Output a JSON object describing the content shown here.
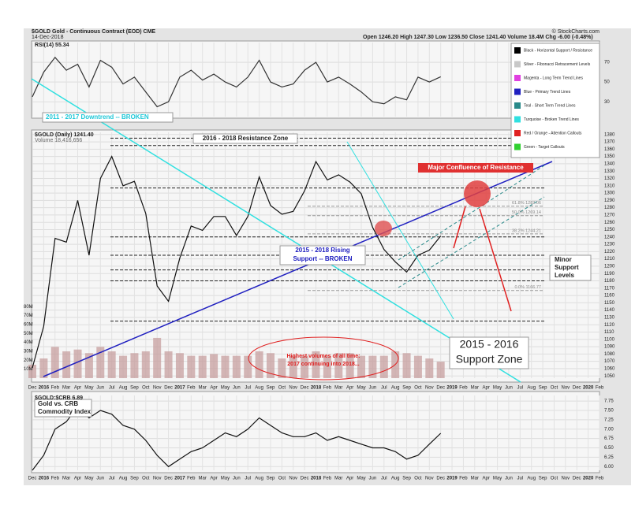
{
  "header": {
    "symbol": "$GOLD Gold - Continuous Contract (EOD) CME",
    "date": "14-Dec-2018",
    "quote": "Open 1246.20 High 1247.30 Low 1236.50 Close 1241.40 Volume 18.4M Chg -6.00 (-0.48%)",
    "source": "© StockCharts.com"
  },
  "legend": [
    "Black - Horizontal Support / Resistance",
    "Silver - Fibonacci Retracement Levels",
    "Magenta - Long Term Trend Lines",
    "Blue - Primary Trend Lines",
    "Teal - Short Term Trend Lines",
    "Turquoise - Broken Trend Lines",
    "Red / Orange - Attention Callouts",
    "Green - Target Callouts"
  ],
  "legend_colors": [
    "#000000",
    "#c8c8c8",
    "#e040e0",
    "#2020c0",
    "#2a8a8a",
    "#30e0e0",
    "#e02020",
    "#30d030"
  ],
  "annotations": [
    "2011 - 2017 Downtrend -- BROKEN",
    "2016 - 2018 Resistance Zone",
    "Major Confluence of Resistance",
    "2015 - 2018 Rising",
    "Support -- BROKEN",
    "Minor",
    "Support",
    "Levels",
    "Highest volumes of all time:",
    "2017 continuing into 2018...",
    "2015 - 2016",
    "Support Zone",
    "Gold vs. CRB",
    "Commodity Index"
  ],
  "chart_data": [
    {
      "type": "line",
      "title": "RSI(14) 55.34",
      "x": [
        "2015-12",
        "2016-01",
        "2016-02",
        "2016-03",
        "2016-04",
        "2016-05",
        "2016-06",
        "2016-07",
        "2016-08",
        "2016-09",
        "2016-10",
        "2016-11",
        "2016-12",
        "2017-01",
        "2017-02",
        "2017-03",
        "2017-04",
        "2017-05",
        "2017-06",
        "2017-07",
        "2017-08",
        "2017-09",
        "2017-10",
        "2017-11",
        "2017-12",
        "2018-01",
        "2018-02",
        "2018-03",
        "2018-04",
        "2018-05",
        "2018-06",
        "2018-07",
        "2018-08",
        "2018-09",
        "2018-10",
        "2018-11",
        "2018-12"
      ],
      "series": [
        {
          "color": "#333333",
          "values": [
            35,
            60,
            75,
            62,
            68,
            45,
            72,
            65,
            48,
            55,
            40,
            25,
            30,
            55,
            62,
            52,
            58,
            50,
            45,
            55,
            72,
            50,
            45,
            48,
            62,
            70,
            50,
            55,
            48,
            40,
            30,
            28,
            35,
            32,
            55,
            50,
            55.34
          ]
        }
      ],
      "ylim": [
        15,
        90
      ],
      "yticks": [
        30,
        50,
        70
      ],
      "grid": true
    },
    {
      "type": "line",
      "title": "$GOLD (Daily) 1241.40",
      "subtitle": "Volume 18,416,656",
      "x": [
        "2015-12",
        "2016-01",
        "2016-02",
        "2016-03",
        "2016-04",
        "2016-05",
        "2016-06",
        "2016-07",
        "2016-08",
        "2016-09",
        "2016-10",
        "2016-11",
        "2016-12",
        "2017-01",
        "2017-02",
        "2017-03",
        "2017-04",
        "2017-05",
        "2017-06",
        "2017-07",
        "2017-08",
        "2017-09",
        "2017-10",
        "2017-11",
        "2017-12",
        "2018-01",
        "2018-02",
        "2018-03",
        "2018-04",
        "2018-05",
        "2018-06",
        "2018-07",
        "2018-08",
        "2018-09",
        "2018-10",
        "2018-11",
        "2018-12"
      ],
      "series": [
        {
          "type": "bar",
          "axis": "y2",
          "color": "#c49a9a",
          "values": [
            15000000,
            22000000,
            35000000,
            30000000,
            32000000,
            28000000,
            35000000,
            30000000,
            25000000,
            28000000,
            30000000,
            45000000,
            30000000,
            28000000,
            25000000,
            25000000,
            27000000,
            25000000,
            25000000,
            25000000,
            30000000,
            28000000,
            22000000,
            25000000,
            25000000,
            30000000,
            25000000,
            28000000,
            28000000,
            25000000,
            25000000,
            25000000,
            30000000,
            28000000,
            25000000,
            22000000,
            18416656
          ]
        },
        {
          "type": "line",
          "color": "#111111",
          "values": [
            1061,
            1118,
            1238,
            1233,
            1290,
            1215,
            1320,
            1350,
            1310,
            1316,
            1272,
            1173,
            1152,
            1211,
            1255,
            1249,
            1268,
            1268,
            1242,
            1268,
            1322,
            1283,
            1271,
            1275,
            1303,
            1343,
            1318,
            1325,
            1315,
            1299,
            1253,
            1223,
            1206,
            1192,
            1215,
            1222,
            1241.4
          ]
        }
      ],
      "levels": [
        1375,
        1365,
        1307,
        {
          "value": 1282.06,
          "label": "61.8% 1282.06"
        },
        {
          "value": 1269.14,
          "label": "50.0% 1269.14"
        },
        {
          "value": 1244.21,
          "label": "38.2% 1244.21"
        },
        1240,
        1215,
        1195,
        1180,
        {
          "value": 1166.77,
          "label": "0.0% 1166.77"
        },
        1125
      ],
      "ylim": [
        1047,
        1383
      ],
      "yticks": [
        1050,
        1060,
        1070,
        1080,
        1090,
        1100,
        1110,
        1120,
        1130,
        1140,
        1150,
        1160,
        1170,
        1180,
        1190,
        1200,
        1210,
        1220,
        1230,
        1240,
        1250,
        1260,
        1270,
        1280,
        1290,
        1300,
        1310,
        1320,
        1330,
        1340,
        1350,
        1360,
        1370,
        1380
      ],
      "y2lim": [
        0,
        275000000
      ],
      "y2ticks": [
        {
          "value": 10000000,
          "label": "10M"
        },
        {
          "value": 20000000,
          "label": "20M"
        },
        {
          "value": 30000000,
          "label": "30M"
        },
        {
          "value": 40000000,
          "label": "40M"
        },
        {
          "value": 50000000,
          "label": "50M"
        },
        {
          "value": 60000000,
          "label": "60M"
        },
        {
          "value": 70000000,
          "label": "70M"
        },
        {
          "value": 80000000,
          "label": "80M"
        }
      ],
      "xlim": [
        "2015-12",
        "2020-02"
      ],
      "xticks": [
        {
          "value": "2015-12",
          "label": "Dec"
        },
        {
          "value": "2016-01",
          "label": "2016"
        },
        {
          "value": "2016-02",
          "label": "Feb"
        },
        {
          "value": "2016-03",
          "label": "Mar"
        },
        {
          "value": "2016-04",
          "label": "Apr"
        },
        {
          "value": "2016-05",
          "label": "May"
        },
        {
          "value": "2016-06",
          "label": "Jun"
        },
        {
          "value": "2016-07",
          "label": "Jul"
        },
        {
          "value": "2016-08",
          "label": "Aug"
        },
        {
          "value": "2016-09",
          "label": "Sep"
        },
        {
          "value": "2016-10",
          "label": "Oct"
        },
        {
          "value": "2016-11",
          "label": "Nov"
        },
        {
          "value": "2016-12",
          "label": "Dec"
        },
        {
          "value": "2017-01",
          "label": "2017"
        },
        {
          "value": "2017-02",
          "label": "Feb"
        },
        {
          "value": "2017-03",
          "label": "Mar"
        },
        {
          "value": "2017-04",
          "label": "Apr"
        },
        {
          "value": "2017-05",
          "label": "May"
        },
        {
          "value": "2017-06",
          "label": "Jun"
        },
        {
          "value": "2017-07",
          "label": "Jul"
        },
        {
          "value": "2017-08",
          "label": "Aug"
        },
        {
          "value": "2017-09",
          "label": "Sep"
        },
        {
          "value": "2017-10",
          "label": "Oct"
        },
        {
          "value": "2017-11",
          "label": "Nov"
        },
        {
          "value": "2017-12",
          "label": "Dec"
        },
        {
          "value": "2018-01",
          "label": "2018"
        },
        {
          "value": "2018-02",
          "label": "Feb"
        },
        {
          "value": "2018-03",
          "label": "Mar"
        },
        {
          "value": "2018-04",
          "label": "Apr"
        },
        {
          "value": "2018-05",
          "label": "May"
        },
        {
          "value": "2018-06",
          "label": "Jun"
        },
        {
          "value": "2018-07",
          "label": "Jul"
        },
        {
          "value": "2018-08",
          "label": "Aug"
        },
        {
          "value": "2018-09",
          "label": "Sep"
        },
        {
          "value": "2018-10",
          "label": "Oct"
        },
        {
          "value": "2018-11",
          "label": "Nov"
        },
        {
          "value": "2018-12",
          "label": "Dec"
        },
        {
          "value": "2019-01",
          "label": "2019"
        },
        {
          "value": "2019-02",
          "label": "Feb"
        },
        {
          "value": "2019-03",
          "label": "Mar"
        },
        {
          "value": "2019-04",
          "label": "Apr"
        },
        {
          "value": "2019-05",
          "label": "May"
        },
        {
          "value": "2019-06",
          "label": "Jun"
        },
        {
          "value": "2019-07",
          "label": "Jul"
        },
        {
          "value": "2019-08",
          "label": "Aug"
        },
        {
          "value": "2019-09",
          "label": "Sep"
        },
        {
          "value": "2019-10",
          "label": "Oct"
        },
        {
          "value": "2019-11",
          "label": "Nov"
        },
        {
          "value": "2019-12",
          "label": "Dec"
        },
        {
          "value": "2020-01",
          "label": "2020"
        },
        {
          "value": "2020-02",
          "label": "Feb"
        }
      ],
      "grid": true
    },
    {
      "type": "line",
      "title": "$GOLD:$CRB 6.89",
      "x": [
        "2015-12",
        "2016-01",
        "2016-02",
        "2016-03",
        "2016-04",
        "2016-05",
        "2016-06",
        "2016-07",
        "2016-08",
        "2016-09",
        "2016-10",
        "2016-11",
        "2016-12",
        "2017-01",
        "2017-02",
        "2017-03",
        "2017-04",
        "2017-05",
        "2017-06",
        "2017-07",
        "2017-08",
        "2017-09",
        "2017-10",
        "2017-11",
        "2017-12",
        "2018-01",
        "2018-02",
        "2018-03",
        "2018-04",
        "2018-05",
        "2018-06",
        "2018-07",
        "2018-08",
        "2018-09",
        "2018-10",
        "2018-11",
        "2018-12"
      ],
      "series": [
        {
          "color": "#111111",
          "values": [
            5.9,
            6.3,
            7.0,
            7.2,
            7.6,
            7.3,
            7.5,
            7.4,
            7.1,
            7.0,
            6.7,
            6.3,
            6.0,
            6.2,
            6.4,
            6.5,
            6.7,
            6.9,
            6.8,
            7.0,
            7.3,
            7.1,
            6.9,
            6.8,
            6.8,
            6.9,
            6.7,
            6.8,
            6.7,
            6.6,
            6.5,
            6.5,
            6.4,
            6.2,
            6.3,
            6.6,
            6.89
          ]
        }
      ],
      "ylim": [
        5.9,
        7.9
      ],
      "yticks": [
        "6.00",
        "6.25",
        "6.50",
        "6.75",
        "7.00",
        "7.25",
        "7.50",
        "7.75"
      ],
      "grid": true
    }
  ]
}
